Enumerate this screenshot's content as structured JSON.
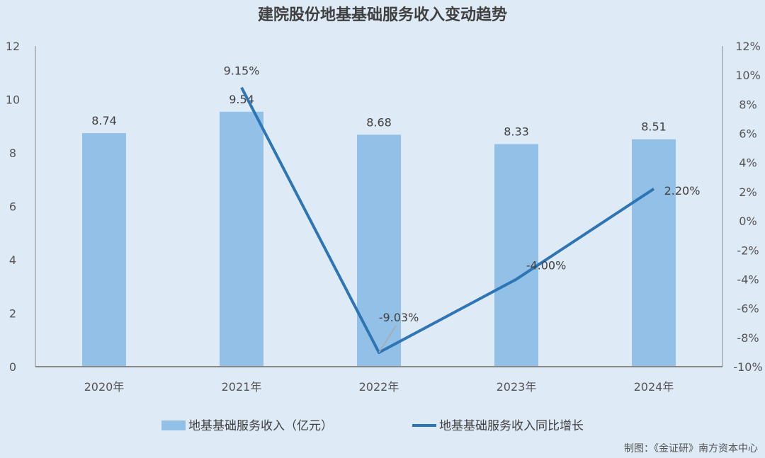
{
  "chart_data": {
    "type": "bar+line",
    "title": "建院股份地基基础服务收入变动趋势",
    "categories": [
      "2020年",
      "2021年",
      "2022年",
      "2023年",
      "2024年"
    ],
    "series": [
      {
        "name": "地基基础服务收入（亿元）",
        "type": "bar",
        "axis": "left",
        "values": [
          8.74,
          9.54,
          8.68,
          8.33,
          8.51
        ],
        "labels": [
          "8.74",
          "9.54",
          "8.68",
          "8.33",
          "8.51"
        ],
        "color": "#93c0e6"
      },
      {
        "name": "地基基础服务收入同比增长",
        "type": "line",
        "axis": "right",
        "values": [
          null,
          9.15,
          -9.03,
          -4.0,
          2.2
        ],
        "labels": [
          "",
          "9.15%",
          "-9.03%",
          "-4.00%",
          "2.20%"
        ],
        "color": "#2e75b6"
      }
    ],
    "y_left": {
      "range": [
        0,
        12
      ],
      "ticks": [
        "0",
        "2",
        "4",
        "6",
        "8",
        "10",
        "12"
      ],
      "tick_values": [
        0,
        2,
        4,
        6,
        8,
        10,
        12
      ]
    },
    "y_right": {
      "range": [
        -10,
        12
      ],
      "ticks": [
        "-10%",
        "-8%",
        "-6%",
        "-4%",
        "-2%",
        "0%",
        "2%",
        "4%",
        "6%",
        "8%",
        "10%",
        "12%"
      ],
      "tick_values": [
        -10,
        -8,
        -6,
        -4,
        -2,
        0,
        2,
        4,
        6,
        8,
        10,
        12
      ]
    },
    "grid": false,
    "legend": "bottom",
    "background": "#deeaf6"
  },
  "source": "制图：《金证研》南方资本中心"
}
